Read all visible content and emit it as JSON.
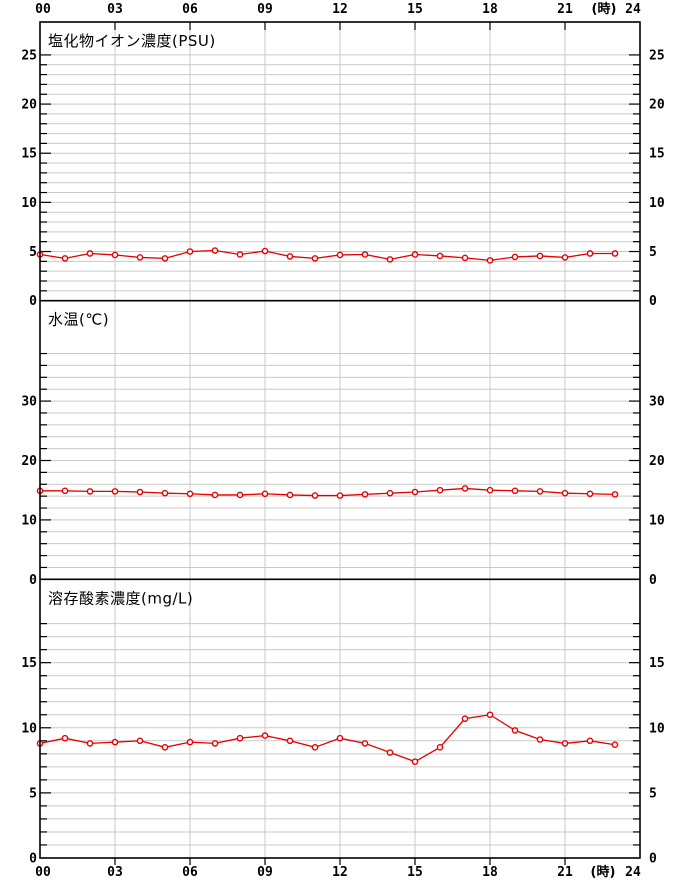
{
  "style": {
    "background": "#ffffff",
    "line_color": "#e60000",
    "marker_fill": "#ffffff",
    "grid_color": "#c9c9c9",
    "axis_color": "#000000",
    "text_color": "#000000"
  },
  "axis": {
    "x": {
      "range": [
        0,
        24
      ],
      "major_tick_hours": [
        0,
        3,
        6,
        9,
        12,
        15,
        18,
        21,
        24
      ],
      "tick_labels": [
        "00",
        "03",
        "06",
        "09",
        "12",
        "15",
        "18",
        "21",
        "24"
      ],
      "unit_label": "(時)",
      "data_step_hours": 1,
      "labels_on_top": true,
      "labels_on_bottom": true
    }
  },
  "chart_data": [
    {
      "type": "line",
      "title": "塩化物イオン濃度(PSU)",
      "unit": "PSU",
      "x_hours": [
        0,
        1,
        2,
        3,
        4,
        5,
        6,
        7,
        8,
        9,
        10,
        11,
        12,
        13,
        14,
        15,
        16,
        17,
        18,
        19,
        20,
        21,
        22,
        23
      ],
      "values": [
        4.7,
        4.3,
        4.8,
        4.65,
        4.4,
        4.3,
        5.0,
        5.1,
        4.7,
        5.05,
        4.5,
        4.3,
        4.65,
        4.7,
        4.2,
        4.7,
        4.55,
        4.35,
        4.1,
        4.45,
        4.55,
        4.4,
        4.8,
        4.8
      ],
      "ylim": [
        0,
        28.35
      ],
      "ytick_labels": [
        0,
        5,
        10,
        15,
        20,
        25
      ],
      "grid_step": 1,
      "label_step": 5,
      "grid_max": 25,
      "grid": true,
      "legend": "none"
    },
    {
      "type": "line",
      "title": "水温(℃)",
      "unit": "℃",
      "x_hours": [
        0,
        1,
        2,
        3,
        4,
        5,
        6,
        7,
        8,
        9,
        10,
        11,
        12,
        13,
        14,
        15,
        16,
        17,
        18,
        19,
        20,
        21,
        22,
        23
      ],
      "values": [
        14.9,
        14.9,
        14.8,
        14.8,
        14.7,
        14.5,
        14.4,
        14.2,
        14.2,
        14.4,
        14.2,
        14.1,
        14.1,
        14.3,
        14.5,
        14.7,
        15.0,
        15.3,
        15.0,
        14.9,
        14.8,
        14.5,
        14.4,
        14.3
      ],
      "ylim": [
        0,
        46.9
      ],
      "ytick_labels": [
        0,
        10,
        20,
        30
      ],
      "grid_step": 2,
      "label_step": 10,
      "grid_max": 38,
      "grid": true,
      "legend": "none"
    },
    {
      "type": "line",
      "title": "溶存酸素濃度(mg/L)",
      "unit": "mg/L",
      "x_hours": [
        0,
        1,
        2,
        3,
        4,
        5,
        6,
        7,
        8,
        9,
        10,
        11,
        12,
        13,
        14,
        15,
        16,
        17,
        18,
        19,
        20,
        21,
        22,
        23
      ],
      "values": [
        8.8,
        9.2,
        8.8,
        8.9,
        9.0,
        8.5,
        8.9,
        8.8,
        9.2,
        9.4,
        9.0,
        8.5,
        9.2,
        8.8,
        8.1,
        7.4,
        8.5,
        10.7,
        11.0,
        9.8,
        9.1,
        8.8,
        9.0,
        8.7
      ],
      "ylim": [
        0,
        21.4
      ],
      "ytick_labels": [
        0,
        5,
        10,
        15
      ],
      "grid_step": 1,
      "label_step": 5,
      "grid_max": 18,
      "grid": true,
      "legend": "none"
    }
  ]
}
